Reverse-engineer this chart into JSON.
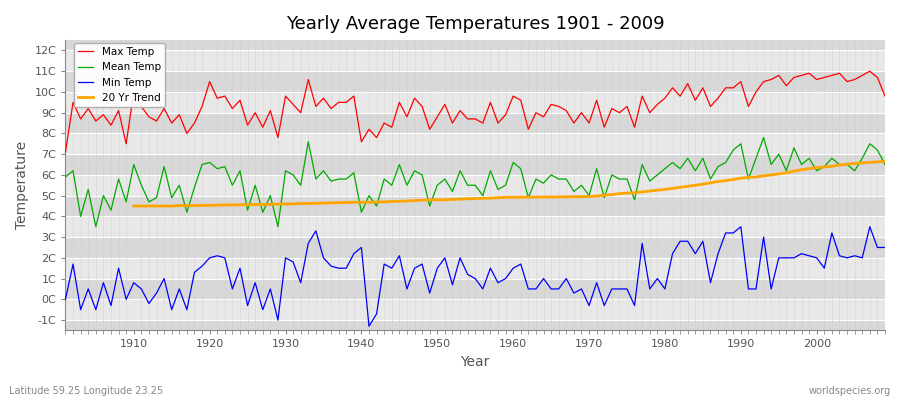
{
  "title": "Yearly Average Temperatures 1901 - 2009",
  "xlabel": "Year",
  "ylabel": "Temperature",
  "lat_lon_label": "Latitude 59.25 Longitude 23.25",
  "source_label": "worldspecies.org",
  "years": [
    1901,
    1902,
    1903,
    1904,
    1905,
    1906,
    1907,
    1908,
    1909,
    1910,
    1911,
    1912,
    1913,
    1914,
    1915,
    1916,
    1917,
    1918,
    1919,
    1920,
    1921,
    1922,
    1923,
    1924,
    1925,
    1926,
    1927,
    1928,
    1929,
    1930,
    1931,
    1932,
    1933,
    1934,
    1935,
    1936,
    1937,
    1938,
    1939,
    1940,
    1941,
    1942,
    1943,
    1944,
    1945,
    1946,
    1947,
    1948,
    1949,
    1950,
    1951,
    1952,
    1953,
    1954,
    1955,
    1956,
    1957,
    1958,
    1959,
    1960,
    1961,
    1962,
    1963,
    1964,
    1965,
    1966,
    1967,
    1968,
    1969,
    1970,
    1971,
    1972,
    1973,
    1974,
    1975,
    1976,
    1977,
    1978,
    1979,
    1980,
    1981,
    1982,
    1983,
    1984,
    1985,
    1986,
    1987,
    1988,
    1989,
    1990,
    1991,
    1992,
    1993,
    1994,
    1995,
    1996,
    1997,
    1998,
    1999,
    2000,
    2001,
    2002,
    2003,
    2004,
    2005,
    2006,
    2007,
    2008,
    2009
  ],
  "max_temp": [
    7.1,
    9.5,
    8.7,
    9.2,
    8.6,
    8.9,
    8.4,
    9.1,
    7.5,
    10.0,
    9.3,
    8.8,
    8.6,
    9.2,
    8.5,
    8.9,
    8.0,
    8.5,
    9.3,
    10.5,
    9.7,
    9.8,
    9.2,
    9.6,
    8.4,
    9.0,
    8.3,
    9.1,
    7.8,
    9.8,
    9.4,
    9.0,
    10.6,
    9.3,
    9.7,
    9.2,
    9.5,
    9.5,
    9.8,
    7.6,
    8.2,
    7.8,
    8.5,
    8.3,
    9.5,
    8.8,
    9.7,
    9.3,
    8.2,
    8.8,
    9.4,
    8.5,
    9.1,
    8.7,
    8.7,
    8.5,
    9.5,
    8.5,
    8.9,
    9.8,
    9.6,
    8.2,
    9.0,
    8.8,
    9.4,
    9.3,
    9.1,
    8.5,
    9.0,
    8.5,
    9.6,
    8.3,
    9.2,
    9.0,
    9.3,
    8.3,
    9.8,
    9.0,
    9.4,
    9.7,
    10.2,
    9.8,
    10.4,
    9.6,
    10.2,
    9.3,
    9.7,
    10.2,
    10.2,
    10.5,
    9.3,
    10.0,
    10.5,
    10.6,
    10.8,
    10.3,
    10.7,
    10.8,
    10.9,
    10.6,
    10.7,
    10.8,
    10.9,
    10.5,
    10.6,
    10.8,
    11.0,
    10.7,
    9.8
  ],
  "mean_temp": [
    5.9,
    6.2,
    4.0,
    5.3,
    3.5,
    5.0,
    4.3,
    5.8,
    4.7,
    6.5,
    5.5,
    4.7,
    4.9,
    6.4,
    4.9,
    5.5,
    4.2,
    5.4,
    6.5,
    6.6,
    6.3,
    6.4,
    5.5,
    6.2,
    4.3,
    5.5,
    4.2,
    5.0,
    3.5,
    6.2,
    6.0,
    5.5,
    7.6,
    5.8,
    6.2,
    5.7,
    5.8,
    5.8,
    6.1,
    4.2,
    5.0,
    4.5,
    5.8,
    5.5,
    6.5,
    5.5,
    6.2,
    6.0,
    4.5,
    5.5,
    5.8,
    5.2,
    6.2,
    5.5,
    5.5,
    5.0,
    6.2,
    5.3,
    5.5,
    6.6,
    6.3,
    4.9,
    5.8,
    5.6,
    6.0,
    5.8,
    5.8,
    5.2,
    5.5,
    5.0,
    6.3,
    4.9,
    6.0,
    5.8,
    5.8,
    4.8,
    6.5,
    5.7,
    6.0,
    6.3,
    6.6,
    6.3,
    6.8,
    6.2,
    6.8,
    5.8,
    6.4,
    6.6,
    7.2,
    7.5,
    5.8,
    6.8,
    7.8,
    6.5,
    7.0,
    6.2,
    7.3,
    6.5,
    6.8,
    6.2,
    6.4,
    6.8,
    6.5,
    6.5,
    6.2,
    6.8,
    7.5,
    7.2,
    6.5
  ],
  "min_temp": [
    0.0,
    1.7,
    -0.5,
    0.5,
    -0.5,
    0.8,
    -0.3,
    1.5,
    0.0,
    0.8,
    0.5,
    -0.2,
    0.3,
    1.0,
    -0.5,
    0.5,
    -0.5,
    1.3,
    1.6,
    2.0,
    2.1,
    2.0,
    0.5,
    1.5,
    -0.3,
    0.8,
    -0.5,
    0.5,
    -1.0,
    2.0,
    1.8,
    0.8,
    2.7,
    3.3,
    2.0,
    1.6,
    1.5,
    1.5,
    2.2,
    2.5,
    -1.3,
    -0.7,
    1.7,
    1.5,
    2.1,
    0.5,
    1.5,
    1.7,
    0.3,
    1.5,
    2.0,
    0.7,
    2.0,
    1.2,
    1.0,
    0.5,
    1.5,
    0.8,
    1.0,
    1.5,
    1.7,
    0.5,
    0.5,
    1.0,
    0.5,
    0.5,
    1.0,
    0.3,
    0.5,
    -0.3,
    0.8,
    -0.3,
    0.5,
    0.5,
    0.5,
    -0.3,
    2.7,
    0.5,
    1.0,
    0.5,
    2.2,
    2.8,
    2.8,
    2.2,
    2.8,
    0.8,
    2.2,
    3.2,
    3.2,
    3.5,
    0.5,
    0.5,
    3.0,
    0.5,
    2.0,
    2.0,
    2.0,
    2.2,
    2.1,
    2.0,
    1.5,
    3.2,
    2.1,
    2.0,
    2.1,
    2.0,
    3.5,
    2.5,
    2.5
  ],
  "trend_years": [
    1910,
    1911,
    1912,
    1913,
    1914,
    1915,
    1916,
    1917,
    1918,
    1919,
    1920,
    1921,
    1922,
    1923,
    1924,
    1925,
    1926,
    1927,
    1928,
    1929,
    1930,
    1931,
    1932,
    1933,
    1934,
    1935,
    1936,
    1937,
    1938,
    1939,
    1940,
    1941,
    1942,
    1943,
    1944,
    1945,
    1946,
    1947,
    1948,
    1949,
    1950,
    1951,
    1952,
    1953,
    1954,
    1955,
    1956,
    1957,
    1958,
    1959,
    1960,
    1961,
    1962,
    1963,
    1964,
    1965,
    1966,
    1967,
    1968,
    1969,
    1970,
    1971,
    1972,
    1973,
    1974,
    1975,
    1976,
    1977,
    1978,
    1979,
    1980,
    1981,
    1982,
    1983,
    1984,
    1985,
    1986,
    1987,
    1988,
    1989,
    1990,
    1991,
    1992,
    1993,
    1994,
    1995,
    1996,
    1997,
    1998,
    1999,
    2000,
    2001,
    2002,
    2003,
    2004,
    2005,
    2006,
    2007,
    2008,
    2009
  ],
  "trend": [
    4.5,
    4.5,
    4.5,
    4.5,
    4.5,
    4.5,
    4.52,
    4.52,
    4.52,
    4.53,
    4.53,
    4.54,
    4.55,
    4.55,
    4.56,
    4.56,
    4.57,
    4.57,
    4.58,
    4.59,
    4.6,
    4.6,
    4.62,
    4.62,
    4.63,
    4.64,
    4.65,
    4.66,
    4.67,
    4.68,
    4.68,
    4.68,
    4.69,
    4.7,
    4.72,
    4.73,
    4.74,
    4.76,
    4.78,
    4.8,
    4.8,
    4.8,
    4.82,
    4.83,
    4.85,
    4.86,
    4.87,
    4.88,
    4.9,
    4.92,
    4.92,
    4.92,
    4.93,
    4.93,
    4.93,
    4.93,
    4.94,
    4.94,
    4.95,
    4.95,
    4.96,
    4.98,
    5.02,
    5.05,
    5.1,
    5.12,
    5.14,
    5.18,
    5.22,
    5.26,
    5.3,
    5.35,
    5.4,
    5.45,
    5.5,
    5.55,
    5.62,
    5.68,
    5.72,
    5.78,
    5.84,
    5.88,
    5.9,
    5.95,
    6.0,
    6.05,
    6.1,
    6.18,
    6.25,
    6.3,
    6.35,
    6.38,
    6.42,
    6.47,
    6.52,
    6.55,
    6.58,
    6.6,
    6.63,
    6.65
  ],
  "ylim": [
    -1.5,
    12.5
  ],
  "yticks": [
    -1,
    0,
    1,
    2,
    3,
    4,
    5,
    6,
    7,
    8,
    9,
    10,
    11,
    12
  ],
  "ytick_labels": [
    "-1C",
    "0C",
    "1C",
    "2C",
    "3C",
    "4C",
    "5C",
    "6C",
    "7C",
    "8C",
    "9C",
    "10C",
    "11C",
    "12C"
  ],
  "xlim": [
    1901,
    2009
  ],
  "xticks": [
    1910,
    1920,
    1930,
    1940,
    1950,
    1960,
    1970,
    1980,
    1990,
    2000
  ],
  "colors": {
    "max_temp": "#ff0000",
    "mean_temp": "#00aa00",
    "min_temp": "#0000ff",
    "trend": "#ffa500",
    "fig_bg": "#ffffff",
    "plot_bg_light": "#e8e8e8",
    "plot_bg_dark": "#d8d8d8",
    "grid_major_h": "#ffffff",
    "grid_minor_v": "#cccccc",
    "title_color": "#000000",
    "tick_color": "#555555",
    "label_color": "#555555"
  }
}
